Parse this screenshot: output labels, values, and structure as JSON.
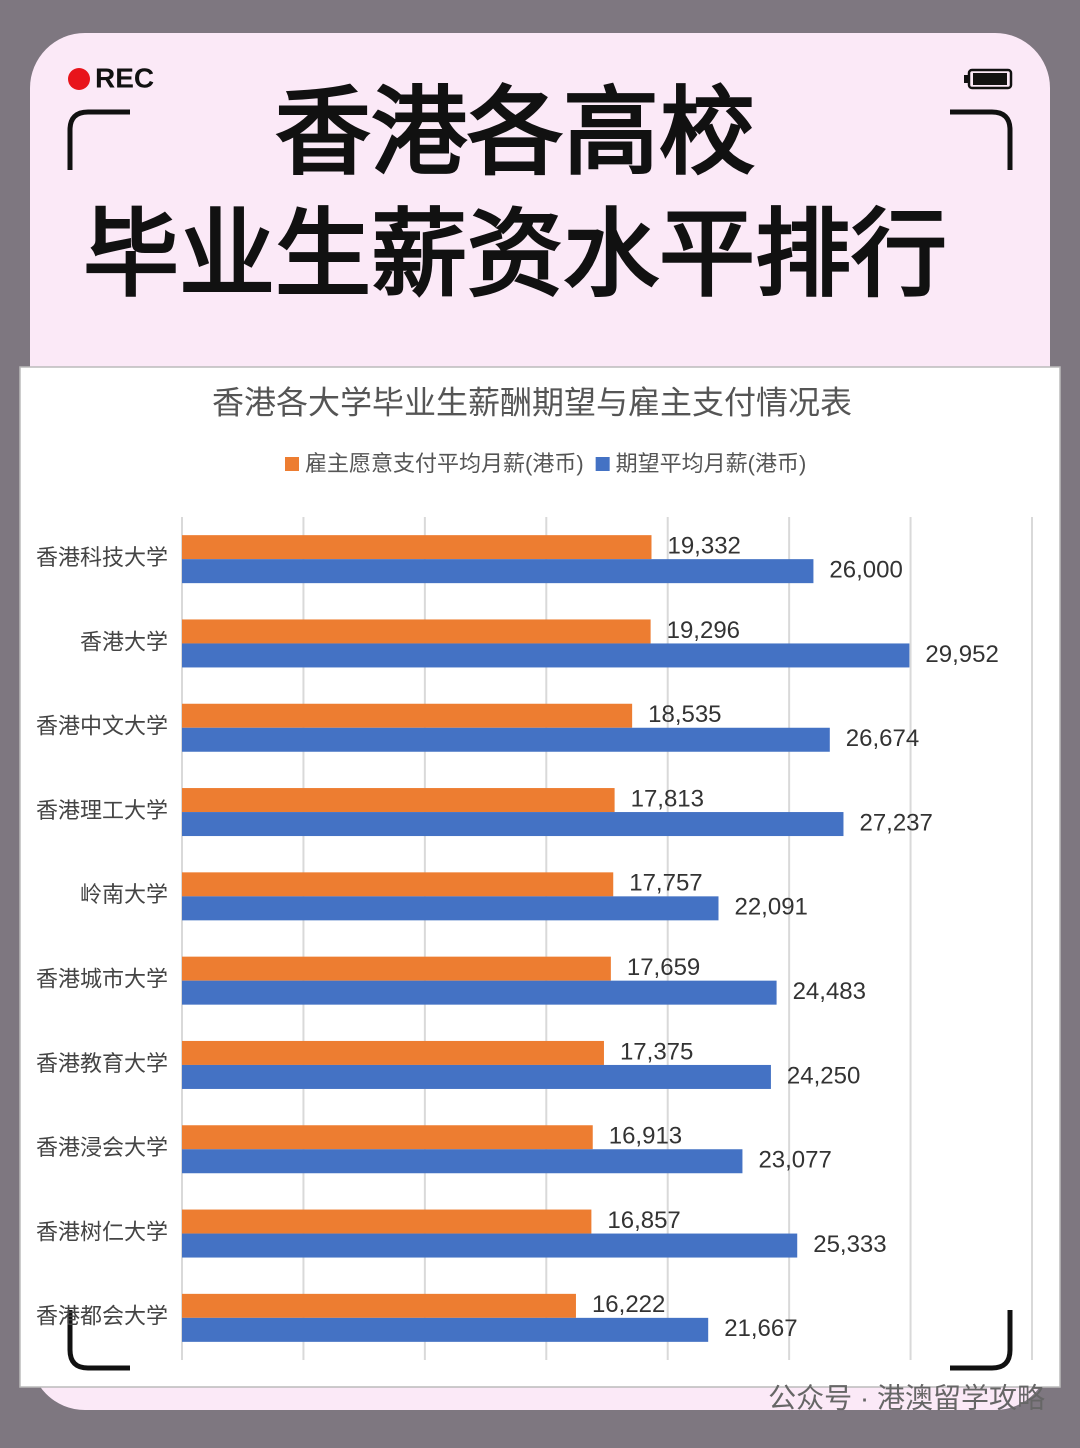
{
  "poster": {
    "rec": "REC",
    "title_line1": "香港各高校",
    "title_line2": "毕业生薪资水平排行",
    "footer": "公众号 · 港澳留学攻略"
  },
  "chart_data": {
    "type": "bar",
    "orientation": "horizontal",
    "title": "香港各大学毕业生薪酬期望与雇主支付情况表",
    "categories": [
      "香港科技大学",
      "香港大学",
      "香港中文大学",
      "香港理工大学",
      "岭南大学",
      "香港城市大学",
      "香港教育大学",
      "香港浸会大学",
      "香港树仁大学",
      "香港都会大学"
    ],
    "series": [
      {
        "name": "雇主愿意支付平均月薪(港币)",
        "color": "#ed7d31",
        "values": [
          19332,
          19296,
          18535,
          17813,
          17757,
          17659,
          17375,
          16913,
          16857,
          16222
        ],
        "value_labels": [
          "19,332",
          "19,296",
          "18,535",
          "17,813",
          "17,757",
          "17,659",
          "17,375",
          "16,913",
          "16,857",
          "16,222"
        ]
      },
      {
        "name": "期望平均月薪(港币)",
        "color": "#4472c4",
        "values": [
          26000,
          29952,
          26674,
          27237,
          22091,
          24483,
          24250,
          23077,
          25333,
          21667
        ],
        "value_labels": [
          "26,000",
          "29,952",
          "26,674",
          "27,237",
          "22,091",
          "24,483",
          "24,250",
          "23,077",
          "25,333",
          "21,667"
        ]
      }
    ],
    "xlim": [
      0,
      35000
    ],
    "xticks": [
      0,
      5000,
      10000,
      15000,
      20000,
      25000,
      30000,
      35000
    ],
    "grid": true,
    "legend": "top"
  }
}
